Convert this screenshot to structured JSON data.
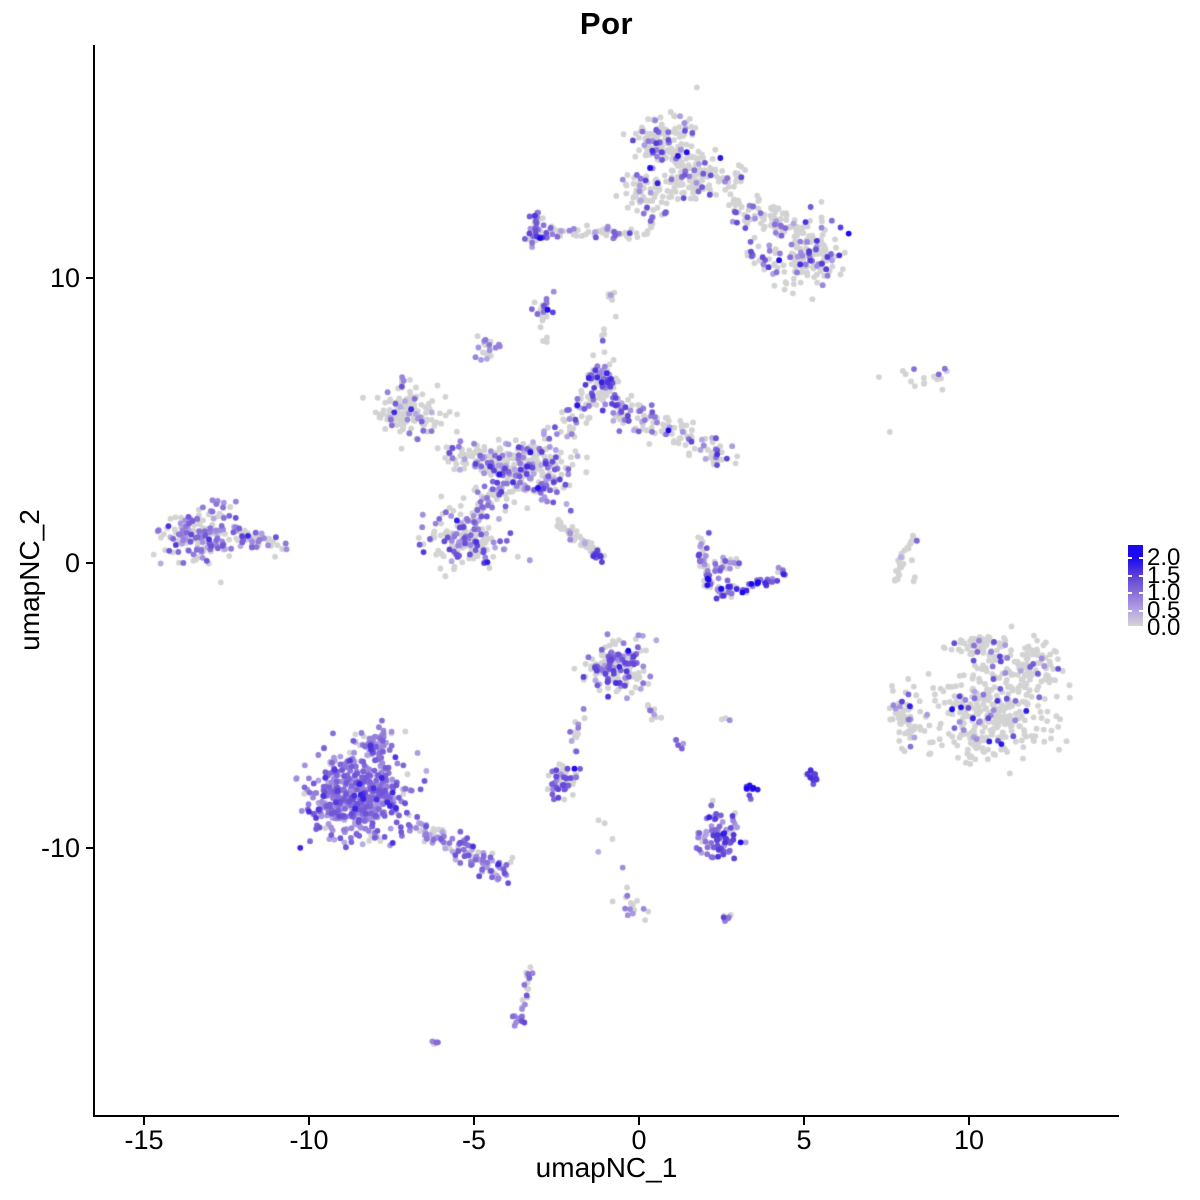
{
  "title": "Por",
  "axes": {
    "x": {
      "label": "umapNC_1",
      "ticks": [
        -15,
        -10,
        -5,
        0,
        5,
        10
      ],
      "range": [
        -16.5,
        14.5
      ]
    },
    "y": {
      "label": "umapNC_2",
      "ticks": [
        10,
        0,
        -10
      ],
      "range": [
        -19.4,
        18.2
      ]
    }
  },
  "legend": {
    "labels": [
      "2.0",
      "1.5",
      "1.0",
      "0.5",
      "0.0"
    ],
    "values": [
      2.0,
      1.5,
      1.0,
      0.5,
      0.0
    ],
    "low_color": "#D3D3D3",
    "high_color": "#1400F0"
  },
  "chart_data": {
    "type": "scatter",
    "title": "Por",
    "xlabel": "umapNC_1",
    "ylabel": "umapNC_2",
    "xlim": [
      -16.5,
      14.5
    ],
    "ylim": [
      -19.4,
      18.2
    ],
    "grid": false,
    "legend_position": "right",
    "point_radius_px": 2.9,
    "point_count_estimate": 3800,
    "value_range": [
      0.0,
      2.0
    ],
    "color_stops": [
      [
        0.0,
        "#D3D3D3"
      ],
      [
        0.5,
        "#B4A6E4"
      ],
      [
        1.0,
        "#8A70D8"
      ],
      [
        1.5,
        "#5B3FD8"
      ],
      [
        2.0,
        "#1B0AF0"
      ]
    ],
    "clusters": [
      {
        "name": "top-main-a",
        "t": "g",
        "x": 0.8,
        "y": 14.8,
        "rx": 0.95,
        "ry": 0.8,
        "n": 140,
        "p0": 0.82,
        "lo": 0.5,
        "hi": 1.6
      },
      {
        "name": "top-main-b",
        "t": "g",
        "x": 1.7,
        "y": 13.5,
        "rx": 1.15,
        "ry": 0.8,
        "n": 150,
        "p0": 0.8,
        "lo": 0.5,
        "hi": 1.5
      },
      {
        "name": "top-main-c",
        "t": "g",
        "x": 0.15,
        "y": 13.0,
        "rx": 0.7,
        "ry": 0.6,
        "n": 60,
        "p0": 0.85,
        "lo": 0.5,
        "hi": 1.4
      },
      {
        "name": "top-arm",
        "t": "s",
        "x1": 2.8,
        "y1": 12.6,
        "x2": 4.8,
        "y2": 11.6,
        "w": 0.5,
        "n": 90,
        "p0": 0.75,
        "lo": 0.5,
        "hi": 1.5
      },
      {
        "name": "top-right-blob",
        "t": "g",
        "x": 5.3,
        "y": 10.9,
        "rx": 0.85,
        "ry": 0.95,
        "n": 130,
        "p0": 0.72,
        "lo": 0.5,
        "hi": 1.7
      },
      {
        "name": "top-arm-lower",
        "t": "s",
        "x1": 3.2,
        "y1": 11.3,
        "x2": 4.6,
        "y2": 9.6,
        "w": 0.5,
        "n": 35,
        "p0": 0.7,
        "lo": 0.5,
        "hi": 1.5
      },
      {
        "name": "chain-left",
        "t": "s",
        "x1": -3.0,
        "y1": 11.65,
        "x2": 0.3,
        "y2": 11.6,
        "w": 0.22,
        "n": 55,
        "p0": 0.8,
        "lo": 0.4,
        "hi": 1.3
      },
      {
        "name": "chain-knot",
        "t": "g",
        "x": -3.05,
        "y": 11.6,
        "rx": 0.35,
        "ry": 0.55,
        "n": 45,
        "p0": 0.35,
        "lo": 0.6,
        "hi": 1.8
      },
      {
        "name": "chain-rise",
        "t": "s",
        "x1": 0.3,
        "y1": 11.8,
        "x2": 0.9,
        "y2": 12.5,
        "w": 0.2,
        "n": 12,
        "p0": 0.75,
        "lo": 0.5,
        "hi": 1.2
      },
      {
        "name": "blob-mid-9",
        "t": "g",
        "x": -2.9,
        "y": 8.95,
        "rx": 0.3,
        "ry": 0.42,
        "n": 26,
        "p0": 0.45,
        "lo": 0.5,
        "hi": 1.5
      },
      {
        "name": "blob-9-tail",
        "t": "s",
        "x1": -2.95,
        "y1": 8.3,
        "x2": -2.8,
        "y2": 7.7,
        "w": 0.1,
        "n": 4,
        "p0": 0.7,
        "lo": 0.4,
        "hi": 0.9
      },
      {
        "name": "blob-7",
        "t": "g",
        "x": -4.65,
        "y": 7.5,
        "rx": 0.36,
        "ry": 0.4,
        "n": 22,
        "p0": 0.55,
        "lo": 0.4,
        "hi": 1.0
      },
      {
        "name": "ctr-left-lobe",
        "t": "g",
        "x": -7.0,
        "y": 5.2,
        "rx": 0.95,
        "ry": 0.75,
        "n": 130,
        "p0": 0.85,
        "lo": 0.4,
        "hi": 1.2
      },
      {
        "name": "ctr-left-neck",
        "t": "s",
        "x1": -7.3,
        "y1": 6.1,
        "x2": -7.1,
        "y2": 6.6,
        "w": 0.15,
        "n": 8,
        "p0": 0.7,
        "lo": 0.4,
        "hi": 1.0
      },
      {
        "name": "ctr-top-blob",
        "t": "g",
        "x": -1.15,
        "y": 6.35,
        "rx": 0.5,
        "ry": 0.65,
        "n": 75,
        "p0": 0.45,
        "lo": 0.6,
        "hi": 1.8
      },
      {
        "name": "ctr-arm-left",
        "t": "s",
        "x1": -5.8,
        "y1": 3.9,
        "x2": -3.8,
        "y2": 3.3,
        "w": 0.55,
        "n": 110,
        "p0": 0.65,
        "lo": 0.4,
        "hi": 1.4
      },
      {
        "name": "ctr-core",
        "t": "g",
        "x": -3.2,
        "y": 3.25,
        "rx": 1.05,
        "ry": 0.95,
        "n": 230,
        "p0": 0.55,
        "lo": 0.4,
        "hi": 1.6
      },
      {
        "name": "ctr-arm-right",
        "t": "s",
        "x1": -0.9,
        "y1": 5.6,
        "x2": 2.7,
        "y2": 3.7,
        "w": 0.55,
        "n": 140,
        "p0": 0.6,
        "lo": 0.4,
        "hi": 1.6
      },
      {
        "name": "ctr-lower-lobe",
        "t": "g",
        "x": -5.3,
        "y": 0.9,
        "rx": 1.15,
        "ry": 1.05,
        "n": 170,
        "p0": 0.6,
        "lo": 0.4,
        "hi": 1.4
      },
      {
        "name": "ctr-bridge",
        "t": "s",
        "x1": -4.4,
        "y1": 2.5,
        "x2": -5.0,
        "y2": 1.8,
        "w": 0.4,
        "n": 30,
        "p0": 0.6,
        "lo": 0.4,
        "hi": 1.2
      },
      {
        "name": "ctr-streak",
        "t": "s",
        "x1": -2.55,
        "y1": 1.45,
        "x2": -1.3,
        "y2": 0.35,
        "w": 0.15,
        "n": 55,
        "p0": 0.92,
        "lo": 0.3,
        "hi": 0.8
      },
      {
        "name": "ctr-streak-tip",
        "t": "g",
        "x": -1.22,
        "y": 0.28,
        "rx": 0.18,
        "ry": 0.18,
        "n": 14,
        "p0": 0.25,
        "lo": 0.8,
        "hi": 1.6
      },
      {
        "name": "ctr-neck",
        "t": "s",
        "x1": -2.3,
        "y1": 4.6,
        "x2": -1.5,
        "y2": 5.9,
        "w": 0.45,
        "n": 40,
        "p0": 0.65,
        "lo": 0.4,
        "hi": 1.4
      },
      {
        "name": "ctr-chain-up",
        "t": "s",
        "x1": -1.2,
        "y1": 7.2,
        "x2": -0.85,
        "y2": 9.6,
        "w": 0.25,
        "n": 13,
        "p0": 0.6,
        "lo": 0.4,
        "hi": 1.2
      },
      {
        "name": "left-main",
        "t": "g",
        "x": -13.3,
        "y": 0.9,
        "rx": 1.05,
        "ry": 0.85,
        "n": 175,
        "p0": 0.5,
        "lo": 0.4,
        "hi": 1.3
      },
      {
        "name": "left-tip",
        "t": "s",
        "x1": -12.2,
        "y1": 0.9,
        "x2": -10.7,
        "y2": 0.6,
        "w": 0.35,
        "n": 45,
        "p0": 0.5,
        "lo": 0.4,
        "hi": 1.3
      },
      {
        "name": "left-top",
        "t": "g",
        "x": -12.6,
        "y": 2.1,
        "rx": 0.5,
        "ry": 0.3,
        "n": 10,
        "p0": 0.5,
        "lo": 0.4,
        "hi": 1.2
      },
      {
        "name": "crescent-left-a",
        "t": "s",
        "x1": 1.85,
        "y1": 0.85,
        "x2": 1.98,
        "y2": -0.1,
        "w": 0.22,
        "n": 22,
        "p0": 0.5,
        "lo": 0.5,
        "hi": 1.5
      },
      {
        "name": "crescent-left-b",
        "t": "s",
        "x1": 1.98,
        "y1": -0.1,
        "x2": 2.2,
        "y2": -0.95,
        "w": 0.22,
        "n": 22,
        "p0": 0.4,
        "lo": 0.6,
        "hi": 1.7
      },
      {
        "name": "crescent-bottom",
        "t": "s",
        "x1": 2.25,
        "y1": -1.0,
        "x2": 3.3,
        "y2": -0.9,
        "w": 0.25,
        "n": 28,
        "p0": 0.35,
        "lo": 0.7,
        "hi": 1.9
      },
      {
        "name": "crescent-right",
        "t": "s",
        "x1": 3.3,
        "y1": -0.9,
        "x2": 4.4,
        "y2": -0.35,
        "w": 0.25,
        "n": 28,
        "p0": 0.35,
        "lo": 0.7,
        "hi": 1.8
      },
      {
        "name": "crescent-inner",
        "t": "g",
        "x": 2.7,
        "y": 0.0,
        "rx": 0.5,
        "ry": 0.45,
        "n": 22,
        "p0": 0.55,
        "lo": 0.5,
        "hi": 1.3
      },
      {
        "name": "crescent-dark-dot",
        "t": "p",
        "x": 2.08,
        "y": -0.55,
        "v": 2.0
      },
      {
        "name": "arc-a",
        "t": "s",
        "x1": 8.35,
        "y1": 0.95,
        "x2": 7.95,
        "y2": 0.15,
        "w": 0.1,
        "n": 15,
        "p0": 0.93,
        "lo": 0.3,
        "hi": 0.9
      },
      {
        "name": "arc-b",
        "t": "s",
        "x1": 7.95,
        "y1": 0.15,
        "x2": 7.78,
        "y2": -0.72,
        "w": 0.1,
        "n": 15,
        "p0": 0.95,
        "lo": 0.3,
        "hi": 0.8
      },
      {
        "name": "arc-purple-dot",
        "t": "p",
        "x": 8.42,
        "y": 0.78,
        "v": 1.1
      },
      {
        "name": "arc-dot-1",
        "t": "p",
        "x": 8.27,
        "y": 0.1,
        "v": 0
      },
      {
        "name": "arc-dot-2",
        "t": "p",
        "x": 8.36,
        "y": -0.5,
        "v": 0
      },
      {
        "name": "arc-dot-3",
        "t": "p",
        "x": 8.32,
        "y": -0.64,
        "v": 0
      },
      {
        "name": "right-sparse-top",
        "t": "g",
        "x": 8.7,
        "y": 6.5,
        "rx": 1.0,
        "ry": 0.35,
        "n": 16,
        "p0": 0.85,
        "lo": 0.5,
        "hi": 1.2
      },
      {
        "name": "right-lone-dot",
        "t": "p",
        "x": 7.6,
        "y": 4.6,
        "v": 0
      },
      {
        "name": "right-main",
        "t": "g",
        "x": 10.7,
        "y": -5.2,
        "rx": 1.5,
        "ry": 1.6,
        "n": 330,
        "p0": 0.88,
        "lo": 0.5,
        "hi": 1.5
      },
      {
        "name": "right-ne",
        "t": "g",
        "x": 12.0,
        "y": -3.6,
        "rx": 0.8,
        "ry": 0.7,
        "n": 80,
        "p0": 0.88,
        "lo": 0.5,
        "hi": 1.4
      },
      {
        "name": "right-top",
        "t": "g",
        "x": 10.3,
        "y": -2.9,
        "rx": 0.8,
        "ry": 0.5,
        "n": 60,
        "p0": 0.85,
        "lo": 0.5,
        "hi": 1.4
      },
      {
        "name": "right-west-lobe",
        "t": "g",
        "x": 8.1,
        "y": -5.3,
        "rx": 0.45,
        "ry": 0.95,
        "n": 60,
        "p0": 0.85,
        "lo": 0.5,
        "hi": 1.3
      },
      {
        "name": "bottomleft-main",
        "t": "g",
        "x": -8.5,
        "y": -8.2,
        "rx": 1.35,
        "ry": 1.25,
        "n": 520,
        "p0": 0.12,
        "lo": 0.4,
        "hi": 1.3
      },
      {
        "name": "bottomleft-peak",
        "t": "g",
        "x": -7.9,
        "y": -6.3,
        "rx": 0.5,
        "ry": 0.5,
        "n": 55,
        "p0": 0.15,
        "lo": 0.4,
        "hi": 1.2
      },
      {
        "name": "bottomleft-tail",
        "t": "s",
        "x1": -6.8,
        "y1": -9.2,
        "x2": -4.0,
        "y2": -10.9,
        "w": 0.42,
        "n": 110,
        "p0": 0.25,
        "lo": 0.4,
        "hi": 1.3
      },
      {
        "name": "small-lower-mid",
        "t": "g",
        "x": -2.3,
        "y": -7.6,
        "rx": 0.4,
        "ry": 0.5,
        "n": 48,
        "p0": 0.35,
        "lo": 0.5,
        "hi": 1.5
      },
      {
        "name": "mid-main",
        "t": "g",
        "x": -0.7,
        "y": -3.6,
        "rx": 0.78,
        "ry": 0.85,
        "n": 170,
        "p0": 0.55,
        "lo": 0.4,
        "hi": 1.5
      },
      {
        "name": "mid-tail-left",
        "t": "s",
        "x1": -1.7,
        "y1": -5.2,
        "x2": -2.1,
        "y2": -6.9,
        "w": 0.18,
        "n": 13,
        "p0": 0.45,
        "lo": 0.4,
        "hi": 1.2
      },
      {
        "name": "mid-tail-right",
        "t": "s",
        "x1": 0.2,
        "y1": -4.9,
        "x2": 1.35,
        "y2": -6.5,
        "w": 0.18,
        "n": 15,
        "p0": 0.5,
        "lo": 0.4,
        "hi": 1.2
      },
      {
        "name": "mid-pair",
        "t": "g",
        "x": 2.65,
        "y": -5.45,
        "rx": 0.15,
        "ry": 0.12,
        "n": 3,
        "p0": 0.3,
        "lo": 0.5,
        "hi": 0.9
      },
      {
        "name": "purple-low",
        "t": "g",
        "x": 2.4,
        "y": -9.6,
        "rx": 0.62,
        "ry": 0.68,
        "n": 75,
        "p0": 0.2,
        "lo": 0.5,
        "hi": 1.6
      },
      {
        "name": "purple-low-top",
        "t": "s",
        "x1": 2.2,
        "y1": -8.4,
        "x2": 2.35,
        "y2": -9.0,
        "w": 0.12,
        "n": 8,
        "p0": 0.4,
        "lo": 0.5,
        "hi": 1.3
      },
      {
        "name": "tiny-dark-a",
        "t": "g",
        "x": 3.35,
        "y": -8.05,
        "rx": 0.18,
        "ry": 0.25,
        "n": 9,
        "p0": 0.1,
        "lo": 1.0,
        "hi": 1.9
      },
      {
        "name": "tiny-dark-b",
        "t": "g",
        "x": 5.25,
        "y": -7.55,
        "rx": 0.28,
        "ry": 0.3,
        "n": 10,
        "p0": 0.1,
        "lo": 0.9,
        "hi": 1.8
      },
      {
        "name": "sparse-trail",
        "t": "s",
        "x1": -1.1,
        "y1": -8.7,
        "x2": -0.45,
        "y2": -12.0,
        "w": 0.3,
        "n": 9,
        "p0": 0.5,
        "lo": 0.4,
        "hi": 1.1
      },
      {
        "name": "small-bottom-mid",
        "t": "g",
        "x": 0.0,
        "y": -12.2,
        "rx": 0.45,
        "ry": 0.35,
        "n": 11,
        "p0": 0.5,
        "lo": 0.4,
        "hi": 1.2
      },
      {
        "name": "tiny-right-low",
        "t": "g",
        "x": 2.6,
        "y": -12.5,
        "rx": 0.15,
        "ry": 0.2,
        "n": 6,
        "p0": 0.2,
        "lo": 0.8,
        "hi": 1.5
      },
      {
        "name": "vertical-trail",
        "t": "s",
        "x1": -3.3,
        "y1": -14.1,
        "x2": -3.55,
        "y2": -15.7,
        "w": 0.14,
        "n": 17,
        "p0": 0.25,
        "lo": 0.6,
        "hi": 1.4
      },
      {
        "name": "vertical-trail-tip",
        "t": "g",
        "x": -3.6,
        "y": -16.0,
        "rx": 0.2,
        "ry": 0.22,
        "n": 10,
        "p0": 0.3,
        "lo": 0.6,
        "hi": 1.4
      },
      {
        "name": "bottom-pair",
        "t": "g",
        "x": -6.15,
        "y": -16.85,
        "rx": 0.13,
        "ry": 0.12,
        "n": 4,
        "p0": 0.1,
        "lo": 0.8,
        "hi": 1.3
      }
    ]
  }
}
